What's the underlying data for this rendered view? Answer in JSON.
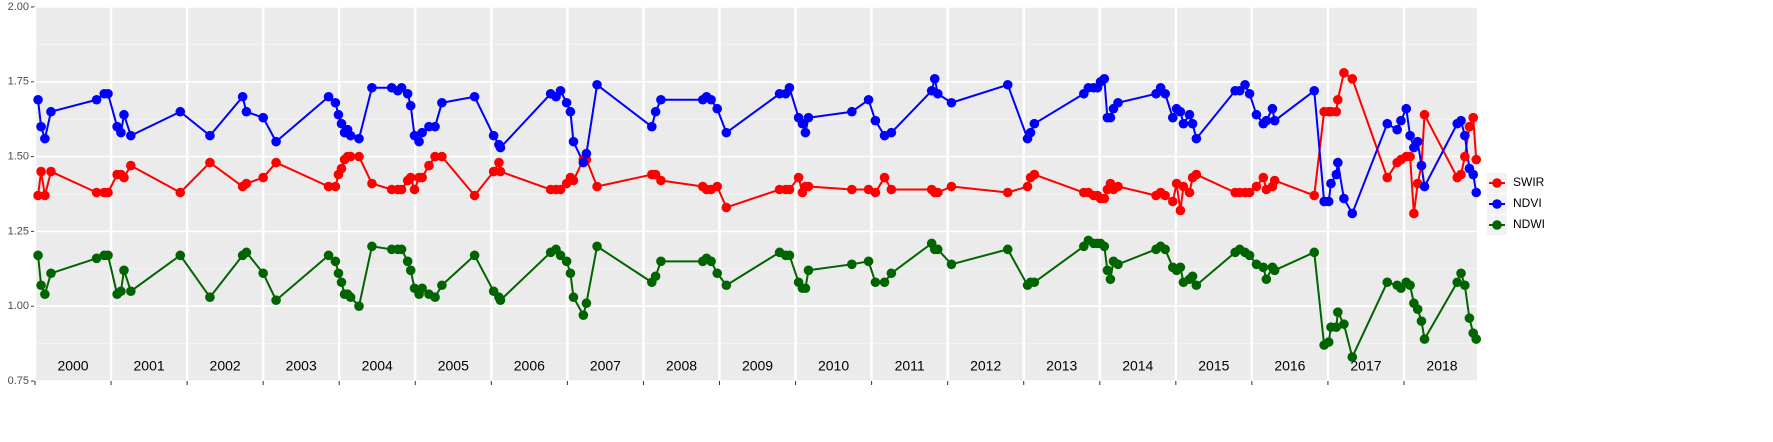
{
  "chart_data": {
    "type": "line",
    "x": [
      2000.04,
      2000.08,
      2000.13,
      2000.21,
      2000.81,
      2000.91,
      2000.96,
      2001.08,
      2001.13,
      2001.17,
      2001.26,
      2001.91,
      2002.3,
      2002.73,
      2002.78,
      2003.0,
      2003.17,
      2003.86,
      2003.95,
      2003.99,
      2004.03,
      2004.07,
      2004.11,
      2004.15,
      2004.26,
      2004.43,
      2004.69,
      2004.77,
      2004.82,
      2004.9,
      2004.94,
      2004.99,
      2005.05,
      2005.09,
      2005.18,
      2005.26,
      2005.35,
      2005.78,
      2006.03,
      2006.1,
      2006.12,
      2006.78,
      2006.85,
      2006.91,
      2006.99,
      2007.04,
      2007.08,
      2007.21,
      2007.25,
      2007.39,
      2008.11,
      2008.16,
      2008.23,
      2008.78,
      2008.83,
      2008.89,
      2008.97,
      2009.09,
      2009.79,
      2009.87,
      2009.92,
      2010.04,
      2010.09,
      2010.13,
      2010.17,
      2010.74,
      2010.96,
      2011.05,
      2011.17,
      2011.26,
      2011.79,
      2011.83,
      2011.87,
      2012.05,
      2012.79,
      2013.05,
      2013.09,
      2013.14,
      2013.79,
      2013.85,
      2013.92,
      2013.97,
      2014.01,
      2014.06,
      2014.1,
      2014.14,
      2014.18,
      2014.24,
      2014.74,
      2014.8,
      2014.86,
      2014.96,
      2015.01,
      2015.06,
      2015.1,
      2015.18,
      2015.22,
      2015.27,
      2015.78,
      2015.84,
      2015.91,
      2015.97,
      2016.06,
      2016.15,
      2016.19,
      2016.27,
      2016.3,
      2016.82,
      2016.95,
      2017.01,
      2017.04,
      2017.11,
      2017.13,
      2017.21,
      2017.32,
      2017.78,
      2017.91,
      2017.96,
      2018.03,
      2018.08,
      2018.13,
      2018.18,
      2018.23,
      2018.27,
      2018.7,
      2018.75,
      2018.8,
      2018.86,
      2018.91,
      2018.95
    ],
    "series": [
      {
        "name": "SWIR",
        "color": "#ff0000",
        "values": [
          1.37,
          1.45,
          1.37,
          1.45,
          1.38,
          1.38,
          1.38,
          1.44,
          1.44,
          1.43,
          1.47,
          1.38,
          1.48,
          1.4,
          1.41,
          1.43,
          1.48,
          1.4,
          1.4,
          1.44,
          1.46,
          1.49,
          1.5,
          1.5,
          1.5,
          1.41,
          1.39,
          1.39,
          1.39,
          1.42,
          1.43,
          1.39,
          1.43,
          1.43,
          1.47,
          1.5,
          1.5,
          1.37,
          1.45,
          1.48,
          1.45,
          1.39,
          1.39,
          1.39,
          1.41,
          1.43,
          1.42,
          1.49,
          1.49,
          1.4,
          1.44,
          1.44,
          1.42,
          1.4,
          1.39,
          1.39,
          1.4,
          1.33,
          1.39,
          1.39,
          1.39,
          1.43,
          1.38,
          1.4,
          1.4,
          1.39,
          1.39,
          1.38,
          1.43,
          1.39,
          1.39,
          1.38,
          1.38,
          1.4,
          1.38,
          1.4,
          1.43,
          1.44,
          1.38,
          1.38,
          1.37,
          1.37,
          1.36,
          1.36,
          1.39,
          1.41,
          1.39,
          1.4,
          1.37,
          1.38,
          1.37,
          1.35,
          1.41,
          1.32,
          1.4,
          1.38,
          1.43,
          1.44,
          1.38,
          1.38,
          1.38,
          1.38,
          1.4,
          1.43,
          1.39,
          1.4,
          1.42,
          1.37,
          1.65,
          1.65,
          1.65,
          1.65,
          1.69,
          1.78,
          1.76,
          1.43,
          1.48,
          1.49,
          1.5,
          1.5,
          1.31,
          1.41,
          1.47,
          1.64,
          1.43,
          1.44,
          1.5,
          1.6,
          1.63,
          1.49
        ]
      },
      {
        "name": "NDVI",
        "color": "#0000ff",
        "values": [
          1.69,
          1.6,
          1.56,
          1.65,
          1.69,
          1.71,
          1.71,
          1.6,
          1.58,
          1.64,
          1.57,
          1.65,
          1.57,
          1.7,
          1.65,
          1.63,
          1.55,
          1.7,
          1.68,
          1.64,
          1.61,
          1.58,
          1.59,
          1.57,
          1.56,
          1.73,
          1.73,
          1.72,
          1.73,
          1.71,
          1.67,
          1.57,
          1.55,
          1.58,
          1.6,
          1.6,
          1.68,
          1.7,
          1.57,
          1.54,
          1.53,
          1.71,
          1.7,
          1.72,
          1.68,
          1.65,
          1.55,
          1.48,
          1.51,
          1.74,
          1.6,
          1.65,
          1.69,
          1.69,
          1.7,
          1.69,
          1.66,
          1.58,
          1.71,
          1.71,
          1.73,
          1.63,
          1.61,
          1.58,
          1.63,
          1.65,
          1.69,
          1.62,
          1.57,
          1.58,
          1.72,
          1.76,
          1.71,
          1.68,
          1.74,
          1.56,
          1.58,
          1.61,
          1.71,
          1.73,
          1.73,
          1.73,
          1.75,
          1.76,
          1.63,
          1.63,
          1.66,
          1.68,
          1.71,
          1.73,
          1.71,
          1.63,
          1.66,
          1.65,
          1.61,
          1.64,
          1.61,
          1.56,
          1.72,
          1.72,
          1.74,
          1.71,
          1.64,
          1.61,
          1.62,
          1.66,
          1.62,
          1.72,
          1.35,
          1.35,
          1.41,
          1.44,
          1.48,
          1.36,
          1.31,
          1.61,
          1.59,
          1.62,
          1.66,
          1.57,
          1.53,
          1.55,
          1.47,
          1.4,
          1.61,
          1.62,
          1.57,
          1.46,
          1.44,
          1.38
        ]
      },
      {
        "name": "NDWI",
        "color": "#006400",
        "values": [
          1.17,
          1.07,
          1.04,
          1.11,
          1.16,
          1.17,
          1.17,
          1.04,
          1.05,
          1.12,
          1.05,
          1.17,
          1.03,
          1.17,
          1.18,
          1.11,
          1.02,
          1.17,
          1.15,
          1.11,
          1.08,
          1.04,
          1.04,
          1.03,
          1.0,
          1.2,
          1.19,
          1.19,
          1.19,
          1.15,
          1.12,
          1.06,
          1.04,
          1.06,
          1.04,
          1.03,
          1.07,
          1.17,
          1.05,
          1.03,
          1.02,
          1.18,
          1.19,
          1.17,
          1.15,
          1.11,
          1.03,
          0.97,
          1.01,
          1.2,
          1.08,
          1.1,
          1.15,
          1.15,
          1.16,
          1.15,
          1.11,
          1.07,
          1.18,
          1.17,
          1.17,
          1.08,
          1.06,
          1.06,
          1.12,
          1.14,
          1.15,
          1.08,
          1.08,
          1.11,
          1.21,
          1.19,
          1.19,
          1.14,
          1.19,
          1.07,
          1.08,
          1.08,
          1.2,
          1.22,
          1.21,
          1.21,
          1.21,
          1.2,
          1.12,
          1.09,
          1.15,
          1.14,
          1.19,
          1.2,
          1.19,
          1.13,
          1.12,
          1.13,
          1.08,
          1.09,
          1.1,
          1.07,
          1.18,
          1.19,
          1.18,
          1.17,
          1.14,
          1.13,
          1.09,
          1.13,
          1.12,
          1.18,
          0.87,
          0.88,
          0.93,
          0.93,
          0.98,
          0.94,
          0.83,
          1.08,
          1.07,
          1.06,
          1.08,
          1.07,
          1.01,
          0.99,
          0.95,
          0.89,
          1.08,
          1.11,
          1.07,
          0.96,
          0.91,
          0.89
        ]
      }
    ],
    "xlim": [
      2000,
      2018.96
    ],
    "xticks": [
      2000,
      2001,
      2002,
      2003,
      2004,
      2005,
      2006,
      2007,
      2008,
      2009,
      2010,
      2011,
      2012,
      2013,
      2014,
      2015,
      2016,
      2017,
      2018
    ],
    "ylim": [
      0.75,
      2
    ],
    "yticks": [
      0.75,
      {
        "value": 1,
        "label": "1.00"
      },
      1.25,
      {
        "value": 1.5,
        "label": "1.50"
      },
      1.75,
      {
        "value": 2,
        "label": "2.00"
      }
    ],
    "yminor": [
      0.875,
      1.125,
      1.375,
      1.625,
      1.875
    ],
    "grid": true,
    "legend": "right"
  }
}
